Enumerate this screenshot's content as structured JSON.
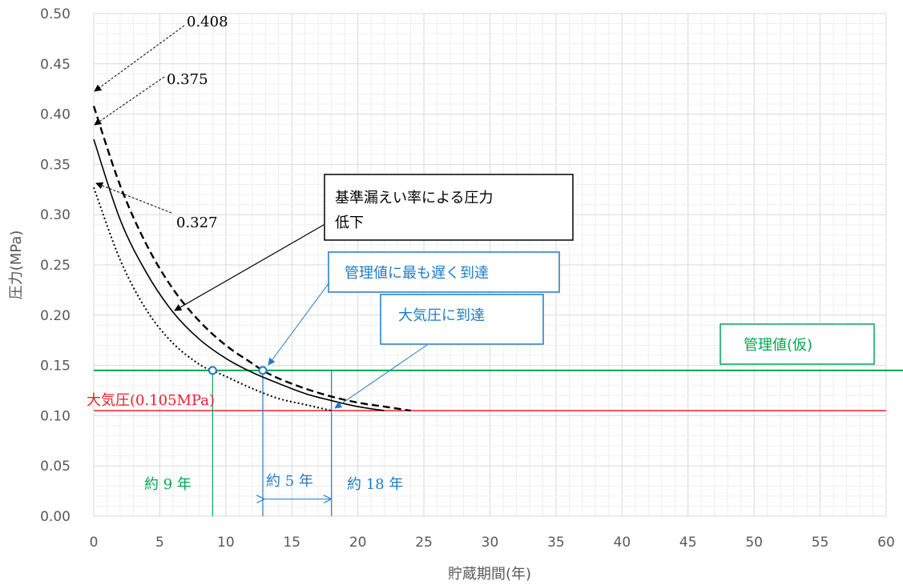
{
  "chart_data": {
    "type": "line",
    "xlabel": "貯蔵期間(年)",
    "ylabel": "圧力(MPa)",
    "xlim": [
      0,
      60
    ],
    "ylim": [
      0,
      0.5
    ],
    "x_ticks": [
      "0",
      "5",
      "10",
      "15",
      "20",
      "25",
      "30",
      "35",
      "40",
      "45",
      "50",
      "55",
      "60"
    ],
    "y_ticks": [
      "0.00",
      "0.05",
      "0.10",
      "0.15",
      "0.20",
      "0.25",
      "0.30",
      "0.35",
      "0.40",
      "0.45",
      "0.50"
    ],
    "grid": true,
    "legend": "none",
    "series": [
      {
        "style": "dashed",
        "color": "#000000",
        "x": [
          0,
          2,
          4,
          6,
          8,
          10,
          12,
          12.8,
          14,
          16,
          18,
          20,
          22,
          24
        ],
        "y": [
          0.408,
          0.329,
          0.27,
          0.226,
          0.194,
          0.17,
          0.152,
          0.145,
          0.137,
          0.127,
          0.119,
          0.113,
          0.109,
          0.105
        ]
      },
      {
        "style": "solid",
        "color": "#000000",
        "x": [
          0,
          2,
          4,
          6,
          8,
          10,
          12,
          14,
          16,
          18,
          20,
          22
        ],
        "y": [
          0.375,
          0.295,
          0.242,
          0.203,
          0.176,
          0.157,
          0.143,
          0.132,
          0.122,
          0.115,
          0.109,
          0.105
        ]
      },
      {
        "style": "dotted",
        "color": "#000000",
        "x": [
          0,
          2,
          4,
          6,
          8,
          9,
          10,
          12,
          14,
          16,
          18
        ],
        "y": [
          0.327,
          0.255,
          0.205,
          0.172,
          0.151,
          0.145,
          0.139,
          0.127,
          0.117,
          0.111,
          0.105
        ]
      }
    ],
    "reference_lines": {
      "management_value": {
        "y": 0.145,
        "color": "#00A650",
        "label": "管理値(仮)"
      },
      "atmospheric": {
        "y": 0.105,
        "color": "#E8202A",
        "label": "大気圧(0.105MPa)"
      }
    },
    "markers": [
      {
        "x": 9,
        "y": 0.145,
        "color": "#1F7AC6"
      },
      {
        "x": 12.8,
        "y": 0.145,
        "color": "#1F7AC6"
      }
    ],
    "vertical_lines": [
      {
        "x": 9,
        "color": "#00A650",
        "label": "約 9 年"
      },
      {
        "x": 12.8,
        "color": "#1F7AC6",
        "label": ""
      },
      {
        "x": 18,
        "color": "#1F7AC6",
        "label": "約 18 年"
      }
    ],
    "span": {
      "x0": 12.8,
      "x1": 18,
      "y": 0.017,
      "color": "#1F7AC6",
      "label": "約 5 年"
    },
    "value_labels": {
      "v408": {
        "value": "0.408",
        "x": 0,
        "y": 0.408
      },
      "v375": {
        "value": "0.375",
        "x": 0,
        "y": 0.375
      },
      "v327": {
        "value": "0.327",
        "x": 0,
        "y": 0.327
      }
    },
    "callouts": {
      "leak_rate": {
        "text1": "基準漏えい率による圧力",
        "text2": "低下",
        "color": "#000000",
        "target_x": 6,
        "target_y": 0.203
      },
      "latest_reach": {
        "text": "管理値に最も遅く到達",
        "color": "#1F7AC6",
        "target_x": 12.8,
        "target_y": 0.145
      },
      "atm_reach": {
        "text": "大気圧に到達",
        "color": "#1F7AC6",
        "target_x": 18,
        "target_y": 0.105
      }
    }
  }
}
